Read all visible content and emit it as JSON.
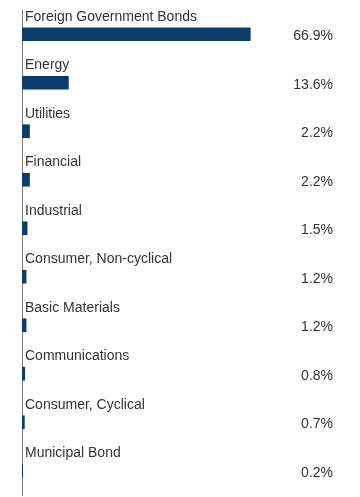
{
  "chart_data": {
    "type": "bar",
    "orientation": "horizontal",
    "categories": [
      "Foreign Government Bonds",
      "Energy",
      "Utilities",
      "Financial",
      "Industrial",
      "Consumer, Non-cyclical",
      "Basic Materials",
      "Communications",
      "Consumer, Cyclical",
      "Municipal Bond"
    ],
    "values": [
      66.9,
      13.6,
      2.2,
      2.2,
      1.5,
      1.2,
      1.2,
      0.8,
      0.7,
      0.2
    ],
    "value_labels": [
      "66.9%",
      "13.6%",
      "2.2%",
      "2.2%",
      "1.5%",
      "1.2%",
      "1.2%",
      "0.8%",
      "0.7%",
      "0.2%"
    ],
    "color": "#0c3c6c",
    "data_labels": true,
    "tick_labels": false,
    "grid": false
  }
}
